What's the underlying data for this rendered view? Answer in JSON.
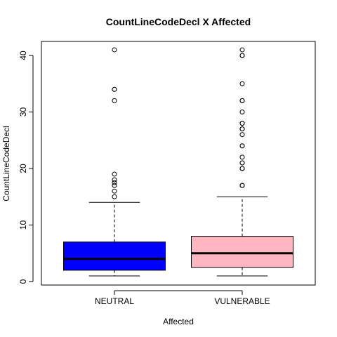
{
  "chart_data": {
    "type": "boxplot",
    "title": "CountLineCodeDecl X Affected",
    "xlabel": "Affected",
    "ylabel": "CountLineCodeDecl",
    "ylim": [
      0,
      42
    ],
    "yticks": [
      0,
      10,
      20,
      30,
      40
    ],
    "categories": [
      "NEUTRAL",
      "VULNERABLE"
    ],
    "boxes": [
      {
        "category": "NEUTRAL",
        "color": "#0000ff",
        "whisker_low": 1,
        "q1": 2,
        "median": 4,
        "q3": 7,
        "whisker_high": 14,
        "outliers": [
          15,
          16,
          17,
          17.5,
          18,
          19,
          32,
          34,
          34,
          41
        ]
      },
      {
        "category": "VULNERABLE",
        "color": "#ffb6c1",
        "whisker_low": 1,
        "q1": 2.5,
        "median": 5,
        "q3": 8,
        "whisker_high": 15,
        "outliers": [
          17,
          17,
          20,
          20,
          21,
          21,
          22,
          24,
          24,
          26,
          27,
          27,
          28,
          28,
          30,
          32,
          32,
          35,
          40,
          40,
          41
        ]
      }
    ]
  }
}
